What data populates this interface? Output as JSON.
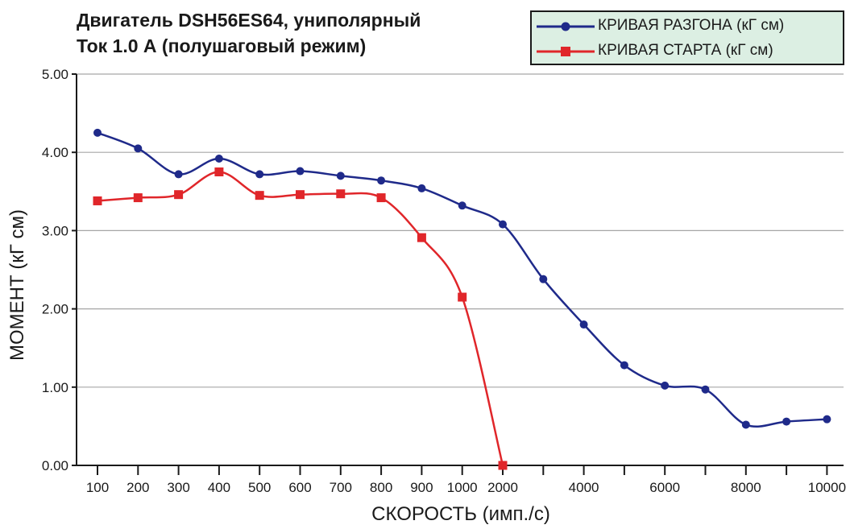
{
  "title_lines": [
    "Двигатель DSH56ES64, униполярный",
    "Ток 1.0 А (полушаговый режим)"
  ],
  "chart_data": {
    "type": "line",
    "title": "Двигатель DSH56ES64, униполярный Ток 1.0 А (полушаговый режим)",
    "xlabel": "СКОРОСТЬ (имп./с)",
    "ylabel": "МОМЕНТ (кГ см)",
    "x_tick_labels": [
      "100",
      "200",
      "300",
      "400",
      "500",
      "600",
      "700",
      "800",
      "900",
      "1000",
      "2000",
      "",
      "4000",
      "",
      "6000",
      "",
      "8000",
      "",
      "10000"
    ],
    "y_tick_labels": [
      "0.00",
      "1.00",
      "2.00",
      "3.00",
      "4.00",
      "5.00"
    ],
    "ylim": [
      0,
      5
    ],
    "grid": true,
    "legend_position": "top-right",
    "x_scale": "categorical (0-1000 step 100, then 2000-10000 step 1000)",
    "series": [
      {
        "name": "КРИВАЯ РАЗГОНА (кГ см)",
        "color": "#1f2a8a",
        "marker": "circle",
        "x": [
          100,
          200,
          300,
          400,
          500,
          600,
          700,
          800,
          900,
          1000,
          2000,
          3000,
          4000,
          5000,
          6000,
          7000,
          8000,
          9000,
          10000
        ],
        "y": [
          4.25,
          4.05,
          3.72,
          3.92,
          3.72,
          3.76,
          3.7,
          3.64,
          3.54,
          3.32,
          3.08,
          2.38,
          1.8,
          1.28,
          1.02,
          0.97,
          0.52,
          0.56,
          0.59
        ]
      },
      {
        "name": "КРИВАЯ СТАРТА (кГ см)",
        "color": "#e0262a",
        "marker": "square",
        "x": [
          100,
          200,
          300,
          400,
          500,
          600,
          700,
          800,
          900,
          1000,
          2000
        ],
        "y": [
          3.38,
          3.42,
          3.46,
          3.75,
          3.45,
          3.46,
          3.47,
          3.42,
          2.91,
          2.15,
          0.0
        ]
      }
    ]
  }
}
